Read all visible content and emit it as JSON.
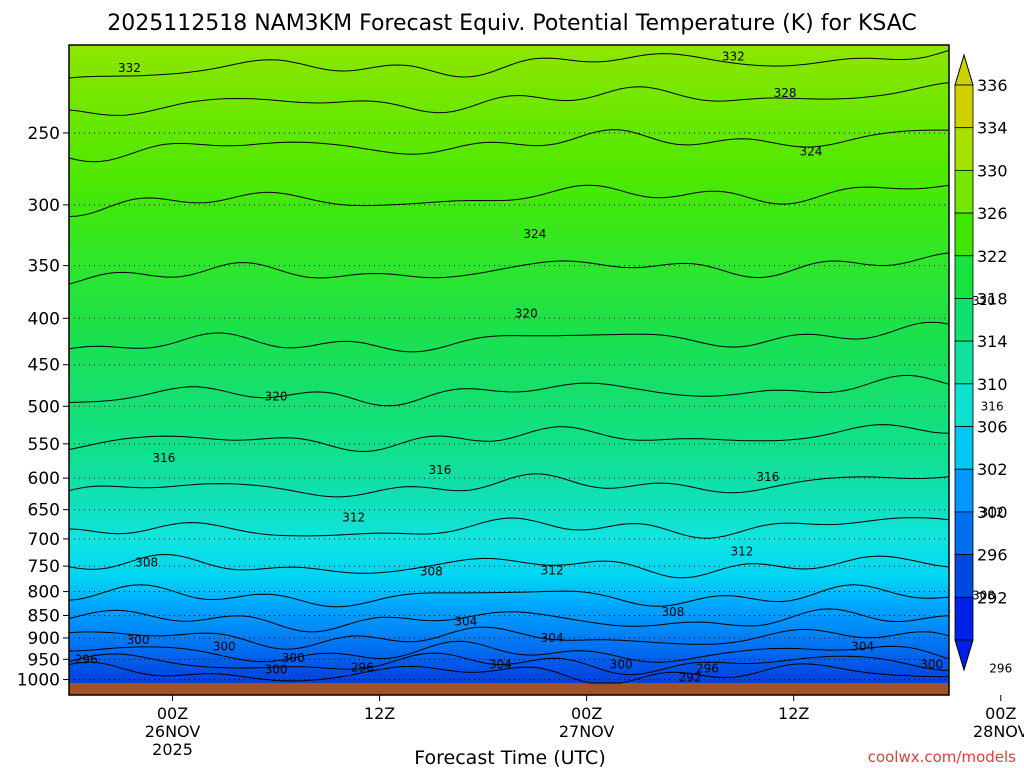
{
  "chart_data": {
    "type": "contour",
    "title": "2025112518 NAM3KM Forecast Equiv. Potential Temperature (K) for KSAC",
    "xlabel": "Forecast Time (UTC)",
    "ylabel": "",
    "units": "K",
    "y_axis": {
      "scale": "log",
      "reversed": true,
      "ticks": [
        250,
        300,
        350,
        400,
        450,
        500,
        550,
        600,
        650,
        700,
        750,
        800,
        850,
        900,
        950,
        1000
      ],
      "range": [
        200,
        1040
      ]
    },
    "x_axis": {
      "range_hours": [
        -6,
        45
      ],
      "ticks": [
        {
          "hour": 0,
          "lines": [
            "00Z",
            "26NOV",
            "2025"
          ]
        },
        {
          "hour": 12,
          "lines": [
            "12Z"
          ]
        },
        {
          "hour": 24,
          "lines": [
            "00Z",
            "27NOV"
          ]
        },
        {
          "hour": 36,
          "lines": [
            "12Z"
          ]
        },
        {
          "hour": 48,
          "lines": [
            "00Z",
            "28NOV"
          ]
        }
      ]
    },
    "grid": "dotted-horizontal",
    "colorbar": {
      "labels": [
        336,
        334,
        330,
        326,
        322,
        318,
        314,
        310,
        306,
        302,
        300,
        296,
        292
      ],
      "colors": [
        "#d0d000",
        "#a8e000",
        "#74e600",
        "#3ee800",
        "#18e440",
        "#10e070",
        "#10e0a0",
        "#10e0d0",
        "#00c8f0",
        "#0098ff",
        "#0070f0",
        "#0048e0",
        "#0020e8"
      ]
    },
    "contour_labels": [
      {
        "value": "332",
        "t": -2.5,
        "p": 212
      },
      {
        "value": "332",
        "t": 32.5,
        "p": 206
      },
      {
        "value": "328",
        "t": 35.5,
        "p": 226
      },
      {
        "value": "324",
        "t": 37,
        "p": 262
      },
      {
        "value": "324",
        "t": 21,
        "p": 323
      },
      {
        "value": "320",
        "t": 20.5,
        "p": 395
      },
      {
        "value": "320",
        "t": 47,
        "p": 383
      },
      {
        "value": "320",
        "t": 6,
        "p": 488
      },
      {
        "value": "316",
        "t": -0.5,
        "p": 570
      },
      {
        "value": "316",
        "t": 15.5,
        "p": 588
      },
      {
        "value": "316",
        "t": 34.5,
        "p": 598
      },
      {
        "value": "316",
        "t": 47.5,
        "p": 500
      },
      {
        "value": "312",
        "t": 10.5,
        "p": 663
      },
      {
        "value": "312",
        "t": 47.5,
        "p": 655
      },
      {
        "value": "312",
        "t": 33,
        "p": 723
      },
      {
        "value": "312",
        "t": 22,
        "p": 758
      },
      {
        "value": "308",
        "t": -1.5,
        "p": 743
      },
      {
        "value": "308",
        "t": 15,
        "p": 760
      },
      {
        "value": "308",
        "t": 29,
        "p": 843
      },
      {
        "value": "308",
        "t": 47,
        "p": 808
      },
      {
        "value": "304",
        "t": 17,
        "p": 863
      },
      {
        "value": "304",
        "t": 22,
        "p": 900
      },
      {
        "value": "304",
        "t": 40,
        "p": 920
      },
      {
        "value": "300",
        "t": -2,
        "p": 905
      },
      {
        "value": "300",
        "t": 3,
        "p": 920
      },
      {
        "value": "300",
        "t": 7,
        "p": 947
      },
      {
        "value": "300",
        "t": 6,
        "p": 975
      },
      {
        "value": "304",
        "t": 19,
        "p": 962
      },
      {
        "value": "300",
        "t": 26,
        "p": 962
      },
      {
        "value": "300",
        "t": 44,
        "p": 962
      },
      {
        "value": "296",
        "t": -5,
        "p": 950
      },
      {
        "value": "296",
        "t": 11,
        "p": 970
      },
      {
        "value": "296",
        "t": 31,
        "p": 973
      },
      {
        "value": "296",
        "t": 48,
        "p": 973
      },
      {
        "value": "292",
        "t": 30,
        "p": 995
      }
    ],
    "credit": "coolwx.com/models"
  }
}
